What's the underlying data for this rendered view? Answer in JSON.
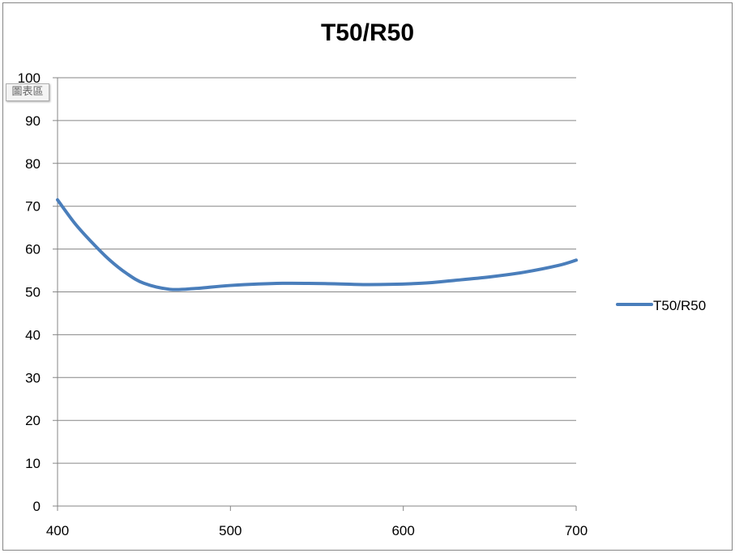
{
  "chart_data": {
    "type": "line",
    "title": "T50/R50",
    "xlabel": "",
    "ylabel": "",
    "xlim": [
      400,
      700
    ],
    "ylim": [
      0,
      100
    ],
    "x_ticks": [
      400,
      500,
      600,
      700
    ],
    "y_ticks": [
      0,
      10,
      20,
      30,
      40,
      50,
      60,
      70,
      80,
      90,
      100
    ],
    "grid": "horizontal",
    "legend_position": "right",
    "series": [
      {
        "name": "T50/R50",
        "color": "#4a7ebb",
        "x": [
          400,
          410,
          420,
          430,
          440,
          450,
          465,
          480,
          500,
          530,
          560,
          580,
          610,
          630,
          650,
          670,
          690,
          700
        ],
        "values": [
          71.5,
          66,
          61.5,
          57.5,
          54.3,
          52,
          50.6,
          50.8,
          51.5,
          52,
          51.9,
          51.7,
          52,
          52.7,
          53.5,
          54.6,
          56.2,
          57.4
        ]
      }
    ]
  },
  "chart_area_tooltip": "圖表區"
}
